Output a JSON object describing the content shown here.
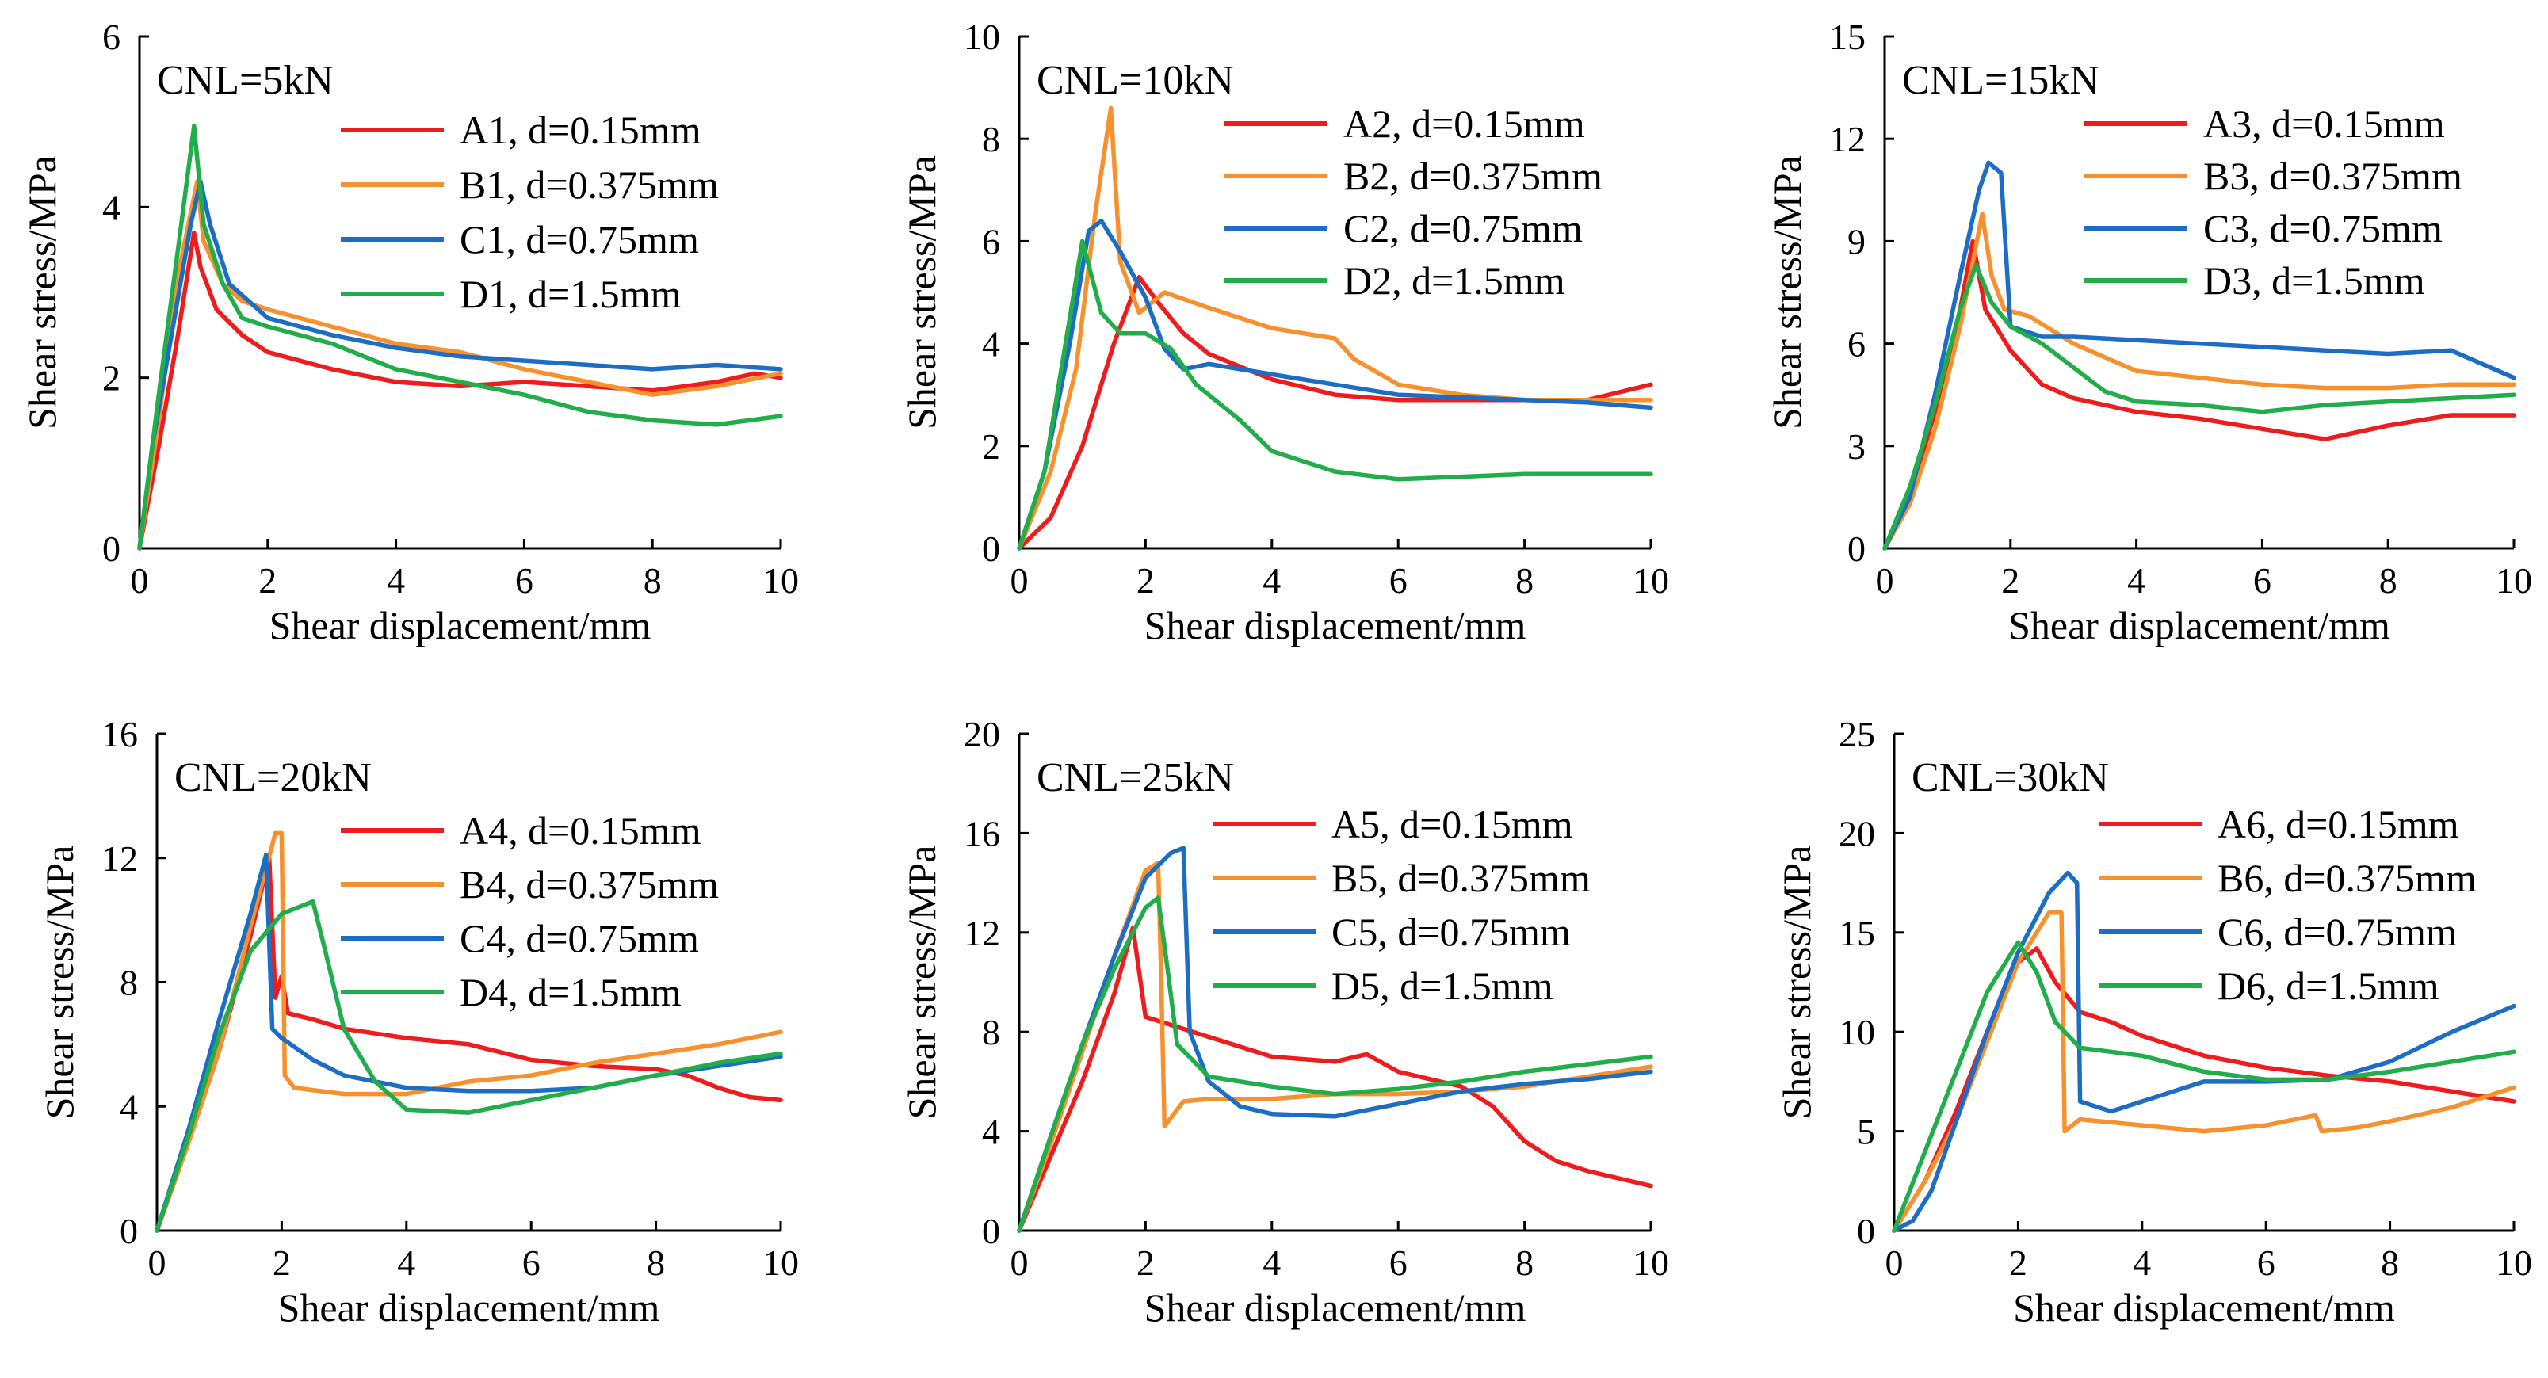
{
  "chart_data": [
    {
      "type": "line",
      "title": "CNL=5kN",
      "xlabel": "Shear displacement/mm",
      "ylabel": "Shear stress/MPa",
      "xlim": [
        0,
        10
      ],
      "ylim": [
        0,
        6
      ],
      "xticks": [
        0,
        2,
        4,
        6,
        8,
        10
      ],
      "yticks": [
        0,
        2,
        4,
        6
      ],
      "series": [
        {
          "name": "A1, d=0.15mm",
          "color": "#ee1c1c",
          "x": [
            0,
            0.3,
            0.6,
            0.85,
            0.95,
            1.2,
            1.6,
            2,
            3,
            4,
            5,
            6,
            7,
            8,
            9,
            9.6,
            10
          ],
          "y": [
            0,
            1.2,
            2.5,
            3.7,
            3.3,
            2.8,
            2.5,
            2.3,
            2.1,
            1.95,
            1.9,
            1.95,
            1.9,
            1.85,
            1.95,
            2.05,
            2.0
          ]
        },
        {
          "name": "B1, d=0.375mm",
          "color": "#f7912d",
          "x": [
            0,
            0.3,
            0.6,
            0.9,
            1.0,
            1.3,
            1.6,
            2,
            3,
            4,
            5,
            6,
            7,
            8,
            9,
            10
          ],
          "y": [
            0,
            1.5,
            3.2,
            4.3,
            3.6,
            3.1,
            2.9,
            2.8,
            2.6,
            2.4,
            2.3,
            2.1,
            1.95,
            1.8,
            1.9,
            2.05
          ]
        },
        {
          "name": "C1, d=0.75mm",
          "color": "#1c6dc3",
          "x": [
            0,
            0.2,
            0.5,
            0.8,
            0.95,
            1.1,
            1.4,
            2,
            3,
            4,
            5,
            6,
            7,
            8,
            9,
            10
          ],
          "y": [
            0,
            1.2,
            2.5,
            3.8,
            4.3,
            3.8,
            3.1,
            2.7,
            2.5,
            2.35,
            2.25,
            2.2,
            2.15,
            2.1,
            2.15,
            2.1
          ]
        },
        {
          "name": "D1, d=1.5mm",
          "color": "#21ad4a",
          "x": [
            0,
            0.3,
            0.6,
            0.85,
            1.0,
            1.3,
            1.6,
            2,
            3,
            4,
            5,
            6,
            7,
            8,
            9,
            10
          ],
          "y": [
            0,
            1.8,
            3.5,
            4.95,
            3.8,
            3.1,
            2.7,
            2.6,
            2.4,
            2.1,
            1.95,
            1.8,
            1.6,
            1.5,
            1.45,
            1.55
          ]
        }
      ]
    },
    {
      "type": "line",
      "title": "CNL=10kN",
      "xlabel": "Shear displacement/mm",
      "ylabel": "Shear stress/MPa",
      "xlim": [
        0,
        10
      ],
      "ylim": [
        0,
        10
      ],
      "xticks": [
        0,
        2,
        4,
        6,
        8,
        10
      ],
      "yticks": [
        0,
        2,
        4,
        6,
        8,
        10
      ],
      "series": [
        {
          "name": "A2, d=0.15mm",
          "color": "#ee1c1c",
          "x": [
            0,
            0.5,
            1.0,
            1.5,
            1.9,
            2.2,
            2.6,
            3,
            4,
            5,
            6,
            7,
            8,
            9,
            10
          ],
          "y": [
            0,
            0.6,
            2.0,
            4.0,
            5.3,
            4.8,
            4.2,
            3.8,
            3.3,
            3.0,
            2.9,
            2.9,
            2.9,
            2.9,
            3.2
          ]
        },
        {
          "name": "B2, d=0.375mm",
          "color": "#f7912d",
          "x": [
            0,
            0.5,
            0.9,
            1.2,
            1.45,
            1.6,
            1.9,
            2.3,
            3,
            4,
            5,
            5.3,
            6,
            7,
            8,
            9,
            10
          ],
          "y": [
            0,
            1.5,
            3.5,
            6.5,
            8.6,
            5.6,
            4.6,
            5.0,
            4.7,
            4.3,
            4.1,
            3.7,
            3.2,
            3.0,
            2.9,
            2.9,
            2.9
          ]
        },
        {
          "name": "C2, d=0.75mm",
          "color": "#1c6dc3",
          "x": [
            0,
            0.4,
            0.8,
            1.1,
            1.3,
            1.6,
            2,
            2.3,
            2.6,
            3,
            4,
            5,
            6,
            7,
            8,
            9,
            10
          ],
          "y": [
            0,
            1.5,
            4.0,
            6.2,
            6.4,
            5.8,
            4.9,
            3.9,
            3.5,
            3.6,
            3.4,
            3.2,
            3.0,
            2.95,
            2.9,
            2.85,
            2.75
          ]
        },
        {
          "name": "D2, d=1.5mm",
          "color": "#21ad4a",
          "x": [
            0,
            0.4,
            0.8,
            1.0,
            1.3,
            1.6,
            2,
            2.4,
            2.8,
            3.5,
            4,
            5,
            6,
            7,
            8,
            9,
            10
          ],
          "y": [
            0,
            1.5,
            4.5,
            6.0,
            4.6,
            4.2,
            4.2,
            3.9,
            3.2,
            2.5,
            1.9,
            1.5,
            1.35,
            1.4,
            1.45,
            1.45,
            1.45
          ]
        }
      ]
    },
    {
      "type": "line",
      "title": "CNL=15kN",
      "xlabel": "Shear displacement/mm",
      "ylabel": "Shear stress/MPa",
      "xlim": [
        0,
        10
      ],
      "ylim": [
        0,
        15
      ],
      "xticks": [
        0,
        2,
        4,
        6,
        8,
        10
      ],
      "yticks": [
        0,
        3,
        6,
        9,
        12,
        15
      ],
      "series": [
        {
          "name": "A3, d=0.15mm",
          "color": "#ee1c1c",
          "x": [
            0,
            0.4,
            0.8,
            1.2,
            1.4,
            1.6,
            2,
            2.5,
            3,
            4,
            5,
            6,
            7,
            8,
            9,
            10
          ],
          "y": [
            0,
            1.5,
            4.0,
            7.0,
            9.0,
            7.0,
            5.8,
            4.8,
            4.4,
            4.0,
            3.8,
            3.5,
            3.2,
            3.6,
            3.9,
            3.9
          ]
        },
        {
          "name": "B3, d=0.375mm",
          "color": "#f7912d",
          "x": [
            0,
            0.4,
            0.8,
            1.2,
            1.55,
            1.7,
            1.9,
            2.3,
            3,
            4,
            5,
            6,
            7,
            8,
            9,
            10
          ],
          "y": [
            0,
            1.3,
            3.5,
            6.5,
            9.8,
            8.0,
            7.0,
            6.8,
            6.0,
            5.2,
            5.0,
            4.8,
            4.7,
            4.7,
            4.8,
            4.8
          ]
        },
        {
          "name": "C3, d=0.75mm",
          "color": "#1c6dc3",
          "x": [
            0,
            0.4,
            0.8,
            1.2,
            1.5,
            1.65,
            1.85,
            2.0,
            2.5,
            3,
            4,
            5,
            6,
            7,
            8,
            9,
            10
          ],
          "y": [
            0,
            1.5,
            4.5,
            8.0,
            10.5,
            11.3,
            11.0,
            6.5,
            6.2,
            6.2,
            6.1,
            6.0,
            5.9,
            5.8,
            5.7,
            5.8,
            5.0
          ]
        },
        {
          "name": "D3, d=1.5mm",
          "color": "#21ad4a",
          "x": [
            0,
            0.4,
            0.8,
            1.2,
            1.45,
            1.7,
            2,
            2.5,
            3,
            3.5,
            4,
            5,
            6,
            7,
            8,
            9,
            10
          ],
          "y": [
            0,
            1.8,
            4.2,
            7.0,
            8.3,
            7.2,
            6.5,
            6.0,
            5.3,
            4.6,
            4.3,
            4.2,
            4.0,
            4.2,
            4.3,
            4.4,
            4.5
          ]
        }
      ]
    },
    {
      "type": "line",
      "title": "CNL=20kN",
      "xlabel": "Shear displacement/mm",
      "ylabel": "Shear stress/MPa",
      "xlim": [
        0,
        10
      ],
      "ylim": [
        0,
        16
      ],
      "xticks": [
        0,
        2,
        4,
        6,
        8,
        10
      ],
      "yticks": [
        0,
        4,
        8,
        12,
        16
      ],
      "series": [
        {
          "name": "A4, d=0.15mm",
          "color": "#ee1c1c",
          "x": [
            0,
            0.5,
            1.0,
            1.5,
            1.8,
            1.9,
            2.0,
            2.1,
            2.5,
            3,
            4,
            5,
            6,
            7,
            8,
            8.5,
            9,
            9.5,
            10
          ],
          "y": [
            0,
            2.8,
            5.8,
            9.5,
            12.0,
            7.5,
            8.2,
            7.0,
            6.8,
            6.5,
            6.2,
            6.0,
            5.5,
            5.3,
            5.2,
            5.0,
            4.6,
            4.3,
            4.2
          ]
        },
        {
          "name": "B4, d=0.375mm",
          "color": "#f7912d",
          "x": [
            0,
            0.5,
            1.0,
            1.5,
            1.9,
            2.0,
            2.05,
            2.2,
            3,
            4,
            5,
            6,
            7,
            8,
            9,
            10
          ],
          "y": [
            0,
            2.8,
            5.8,
            9.8,
            12.8,
            12.8,
            5.0,
            4.6,
            4.4,
            4.4,
            4.8,
            5.0,
            5.4,
            5.7,
            6.0,
            6.4
          ]
        },
        {
          "name": "C4, d=0.75mm",
          "color": "#1c6dc3",
          "x": [
            0,
            0.5,
            1.0,
            1.5,
            1.75,
            1.85,
            2.0,
            2.5,
            3,
            4,
            5,
            6,
            7,
            8,
            9,
            10
          ],
          "y": [
            0,
            3.2,
            6.8,
            10.2,
            12.1,
            6.5,
            6.2,
            5.5,
            5.0,
            4.6,
            4.5,
            4.5,
            4.6,
            5.0,
            5.3,
            5.6
          ]
        },
        {
          "name": "D4, d=1.5mm",
          "color": "#21ad4a",
          "x": [
            0,
            0.5,
            1.0,
            1.5,
            2.0,
            2.5,
            2.7,
            3.0,
            3.5,
            4,
            5,
            6,
            7,
            8,
            9,
            10
          ],
          "y": [
            0,
            3.0,
            6.3,
            9.0,
            10.2,
            10.6,
            9.0,
            6.5,
            4.8,
            3.9,
            3.8,
            4.2,
            4.6,
            5.0,
            5.4,
            5.7
          ]
        }
      ]
    },
    {
      "type": "line",
      "title": "CNL=25kN",
      "xlabel": "Shear displacement/mm",
      "ylabel": "Shear stress/MPa",
      "xlim": [
        0,
        10
      ],
      "ylim": [
        0,
        20
      ],
      "xticks": [
        0,
        2,
        4,
        6,
        8,
        10
      ],
      "yticks": [
        0,
        4,
        8,
        12,
        16,
        20
      ],
      "series": [
        {
          "name": "A5, d=0.15mm",
          "color": "#ee1c1c",
          "x": [
            0,
            0.5,
            1.0,
            1.5,
            1.8,
            2.0,
            2.5,
            3,
            4,
            5,
            5.5,
            6,
            7,
            7.5,
            8,
            8.5,
            9,
            10
          ],
          "y": [
            0,
            3.0,
            6.0,
            9.5,
            12.2,
            8.6,
            8.2,
            7.8,
            7.0,
            6.8,
            7.1,
            6.4,
            5.8,
            5.0,
            3.6,
            2.8,
            2.4,
            1.8
          ]
        },
        {
          "name": "B5, d=0.375mm",
          "color": "#f7912d",
          "x": [
            0,
            0.5,
            1.0,
            1.5,
            2.0,
            2.2,
            2.25,
            2.3,
            2.6,
            3,
            4,
            5,
            6,
            7,
            8,
            9,
            10
          ],
          "y": [
            0,
            3.5,
            7.2,
            11.0,
            14.5,
            14.8,
            10.0,
            4.2,
            5.2,
            5.3,
            5.3,
            5.5,
            5.5,
            5.6,
            5.8,
            6.2,
            6.6
          ]
        },
        {
          "name": "C5, d=0.75mm",
          "color": "#1c6dc3",
          "x": [
            0,
            0.5,
            1.0,
            1.5,
            2.0,
            2.4,
            2.6,
            2.7,
            3.0,
            3.5,
            4,
            5,
            6,
            7,
            8,
            9,
            10
          ],
          "y": [
            0,
            3.8,
            7.5,
            11.0,
            14.2,
            15.2,
            15.4,
            8.0,
            6.0,
            5.0,
            4.7,
            4.6,
            5.1,
            5.6,
            5.9,
            6.1,
            6.4
          ]
        },
        {
          "name": "D5, d=1.5mm",
          "color": "#21ad4a",
          "x": [
            0,
            0.5,
            1.0,
            1.5,
            2.0,
            2.2,
            2.35,
            2.5,
            3,
            4,
            5,
            6,
            7,
            8,
            9,
            10
          ],
          "y": [
            0,
            3.8,
            7.5,
            10.5,
            13.0,
            13.4,
            10.5,
            7.5,
            6.2,
            5.8,
            5.5,
            5.7,
            6.0,
            6.4,
            6.7,
            7.0
          ]
        }
      ]
    },
    {
      "type": "line",
      "title": "CNL=30kN",
      "xlabel": "Shear displacement/mm",
      "ylabel": "Shear stress/MPa",
      "xlim": [
        0,
        10
      ],
      "ylim": [
        0,
        25
      ],
      "xticks": [
        0,
        2,
        4,
        6,
        8,
        10
      ],
      "yticks": [
        0,
        5,
        10,
        15,
        20,
        25
      ],
      "series": [
        {
          "name": "A6, d=0.15mm",
          "color": "#ee1c1c",
          "x": [
            0,
            0.5,
            1.0,
            1.5,
            2.0,
            2.3,
            2.6,
            3.0,
            3.5,
            4,
            5,
            6,
            7,
            8,
            9,
            10
          ],
          "y": [
            0,
            2.5,
            6.0,
            10.0,
            13.5,
            14.2,
            12.5,
            11.0,
            10.5,
            9.8,
            8.8,
            8.2,
            7.8,
            7.5,
            7.0,
            6.5
          ]
        },
        {
          "name": "B6, d=0.375mm",
          "color": "#f7912d",
          "x": [
            0,
            0.5,
            1.0,
            1.5,
            2.0,
            2.5,
            2.7,
            2.75,
            3.0,
            4,
            5,
            6,
            6.8,
            6.9,
            7.5,
            8,
            9,
            10
          ],
          "y": [
            0,
            2.5,
            5.5,
            9.5,
            13.5,
            16.0,
            16.0,
            5.0,
            5.6,
            5.3,
            5.0,
            5.3,
            5.8,
            5.0,
            5.2,
            5.5,
            6.2,
            7.2
          ]
        },
        {
          "name": "C6, d=0.75mm",
          "color": "#1c6dc3",
          "x": [
            0,
            0.3,
            0.6,
            1.0,
            1.5,
            2.0,
            2.5,
            2.8,
            2.95,
            3.0,
            3.5,
            4,
            5,
            6,
            7,
            8,
            9,
            10
          ],
          "y": [
            0,
            0.5,
            2.0,
            5.5,
            10.0,
            14.0,
            17.0,
            18.0,
            17.5,
            6.5,
            6.0,
            6.5,
            7.5,
            7.5,
            7.6,
            8.5,
            10.0,
            11.3
          ]
        },
        {
          "name": "D6, d=1.5mm",
          "color": "#21ad4a",
          "x": [
            0,
            0.5,
            1.0,
            1.5,
            2.0,
            2.3,
            2.6,
            3,
            4,
            5,
            6,
            7,
            8,
            9,
            10
          ],
          "y": [
            0,
            4.0,
            8.0,
            12.0,
            14.5,
            13.0,
            10.5,
            9.2,
            8.8,
            8.0,
            7.6,
            7.6,
            8.0,
            8.5,
            9.0
          ]
        }
      ]
    }
  ]
}
